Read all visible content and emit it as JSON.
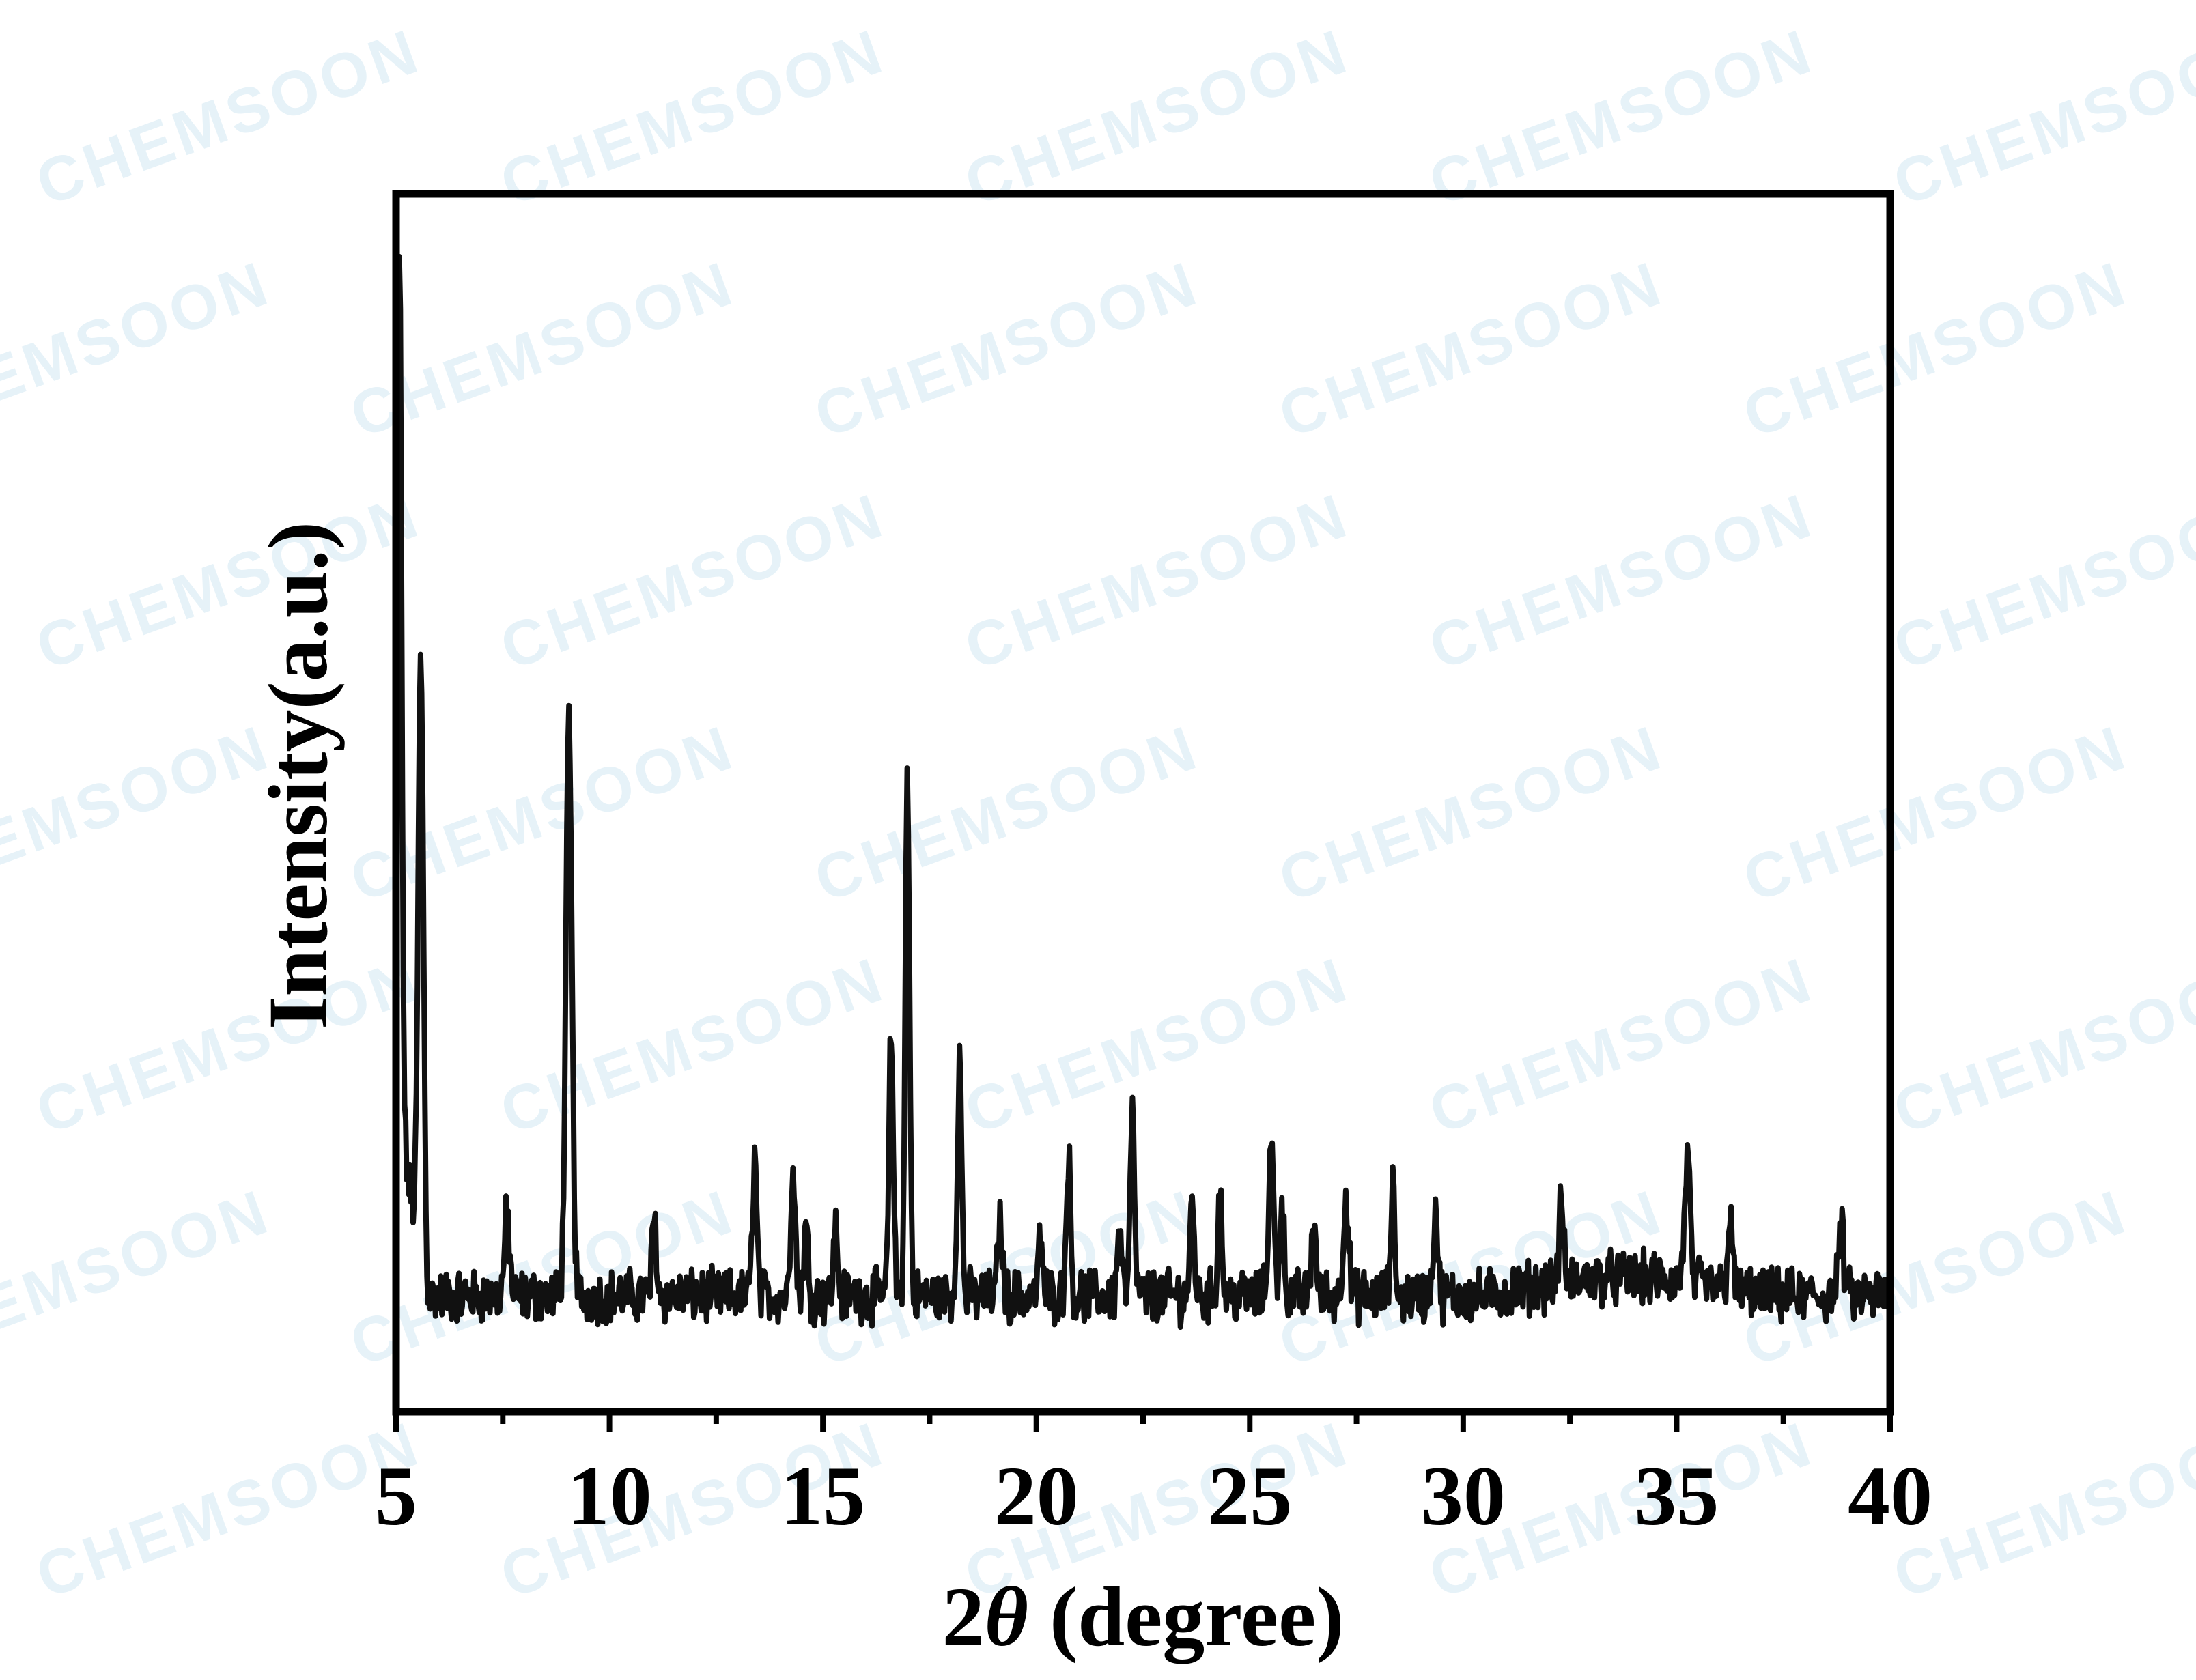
{
  "watermark": "CHEMSOON",
  "chart_data": {
    "type": "line",
    "xlabel": "2θ (degree)",
    "xlabel_prefix": "2",
    "xlabel_symbol": "θ",
    "xlabel_suffix": " (degree)",
    "ylabel": "Intensity(a.u.)",
    "xlim": [
      5,
      40
    ],
    "ylim": [
      0,
      100
    ],
    "x_ticks": [
      5,
      10,
      15,
      20,
      25,
      30,
      35,
      40
    ],
    "grid": false,
    "legend": "none",
    "y_tick_labels": false,
    "line_color": "#111111",
    "series": [
      {
        "baseline": 9.5,
        "peaks": [
          {
            "x": 5.08,
            "y": 78,
            "w": 0.05
          },
          {
            "x": 5.58,
            "y": 58,
            "w": 0.06
          },
          {
            "x": 7.6,
            "y": 16,
            "w": 0.06
          },
          {
            "x": 9.05,
            "y": 56,
            "w": 0.07
          },
          {
            "x": 11.05,
            "y": 16,
            "w": 0.05
          },
          {
            "x": 13.4,
            "y": 21,
            "w": 0.05
          },
          {
            "x": 14.3,
            "y": 21,
            "w": 0.05
          },
          {
            "x": 14.6,
            "y": 15,
            "w": 0.05
          },
          {
            "x": 15.3,
            "y": 15,
            "w": 0.05
          },
          {
            "x": 16.6,
            "y": 31,
            "w": 0.05
          },
          {
            "x": 16.98,
            "y": 52,
            "w": 0.05
          },
          {
            "x": 18.2,
            "y": 29,
            "w": 0.05
          },
          {
            "x": 19.15,
            "y": 16,
            "w": 0.05
          },
          {
            "x": 20.1,
            "y": 14,
            "w": 0.05
          },
          {
            "x": 20.75,
            "y": 21,
            "w": 0.05
          },
          {
            "x": 21.95,
            "y": 15,
            "w": 0.05
          },
          {
            "x": 22.25,
            "y": 24,
            "w": 0.05
          },
          {
            "x": 23.65,
            "y": 17,
            "w": 0.05
          },
          {
            "x": 24.3,
            "y": 18,
            "w": 0.05
          },
          {
            "x": 25.5,
            "y": 22,
            "w": 0.06
          },
          {
            "x": 25.75,
            "y": 17,
            "w": 0.05
          },
          {
            "x": 26.5,
            "y": 16,
            "w": 0.05
          },
          {
            "x": 27.25,
            "y": 18,
            "w": 0.06
          },
          {
            "x": 28.35,
            "y": 18,
            "w": 0.05
          },
          {
            "x": 29.35,
            "y": 17,
            "w": 0.05
          },
          {
            "x": 32.3,
            "y": 16,
            "w": 0.05
          },
          {
            "x": 35.25,
            "y": 20,
            "w": 0.06
          },
          {
            "x": 36.25,
            "y": 16,
            "w": 0.05
          },
          {
            "x": 38.85,
            "y": 15,
            "w": 0.06
          }
        ]
      }
    ]
  }
}
